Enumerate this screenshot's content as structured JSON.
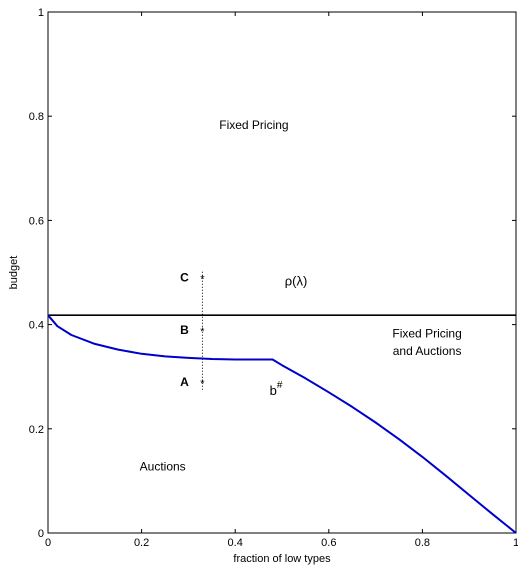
{
  "chart_data": {
    "type": "line",
    "xlabel": "fraction of low types",
    "ylabel": "budget",
    "xlim": [
      0,
      1
    ],
    "ylim": [
      0,
      1
    ],
    "xticks": [
      {
        "value": 0,
        "label": "0"
      },
      {
        "value": 0.2,
        "label": "0.2"
      },
      {
        "value": 0.4,
        "label": "0.4"
      },
      {
        "value": 0.6,
        "label": "0.6"
      },
      {
        "value": 0.8,
        "label": "0.8"
      },
      {
        "value": 1,
        "label": "1"
      }
    ],
    "yticks": [
      {
        "value": 0,
        "label": "0"
      },
      {
        "value": 0.2,
        "label": "0.2"
      },
      {
        "value": 0.4,
        "label": "0.4"
      },
      {
        "value": 0.6,
        "label": "0.6"
      },
      {
        "value": 0.8,
        "label": "0.8"
      },
      {
        "value": 1,
        "label": "1"
      }
    ],
    "grid": false,
    "series": [
      {
        "label": "ρ(λ)",
        "color": "#000000",
        "x": [
          0,
          1
        ],
        "y": [
          0.418,
          0.418
        ]
      },
      {
        "label": "b#",
        "color": "#0000cc",
        "x": [
          0,
          0.02,
          0.05,
          0.1,
          0.15,
          0.2,
          0.25,
          0.3,
          0.35,
          0.4,
          0.45,
          0.48,
          0.5,
          0.55,
          0.6,
          0.65,
          0.7,
          0.75,
          0.8,
          0.85,
          0.9,
          0.95,
          1.0
        ],
        "y": [
          0.418,
          0.397,
          0.38,
          0.363,
          0.352,
          0.344,
          0.339,
          0.336,
          0.334,
          0.333,
          0.333,
          0.333,
          0.322,
          0.297,
          0.27,
          0.242,
          0.212,
          0.18,
          0.146,
          0.11,
          0.073,
          0.036,
          0.0
        ]
      }
    ],
    "markers": [
      {
        "label": "A",
        "symbol": "*",
        "x": 0.33,
        "y": 0.29
      },
      {
        "label": "B",
        "symbol": "*",
        "x": 0.33,
        "y": 0.39
      },
      {
        "label": "C",
        "symbol": "*",
        "x": 0.33,
        "y": 0.49
      }
    ],
    "dotted_line": {
      "x": 0.33,
      "y": [
        0.275,
        0.505
      ]
    },
    "annotations": [
      {
        "text": "Fixed Pricing",
        "x": 0.44,
        "y": 0.775
      },
      {
        "text": "Fixed Pricing",
        "x": 0.81,
        "y": 0.375
      },
      {
        "text": "and Auctions",
        "x": 0.81,
        "y": 0.342
      },
      {
        "text": "Auctions",
        "x": 0.245,
        "y": 0.12
      },
      {
        "text": "ρ(λ)",
        "x": 0.53,
        "y": 0.475
      }
    ],
    "curve_label": {
      "base": "b",
      "sup": "#",
      "x": 0.5,
      "y": 0.265
    }
  }
}
